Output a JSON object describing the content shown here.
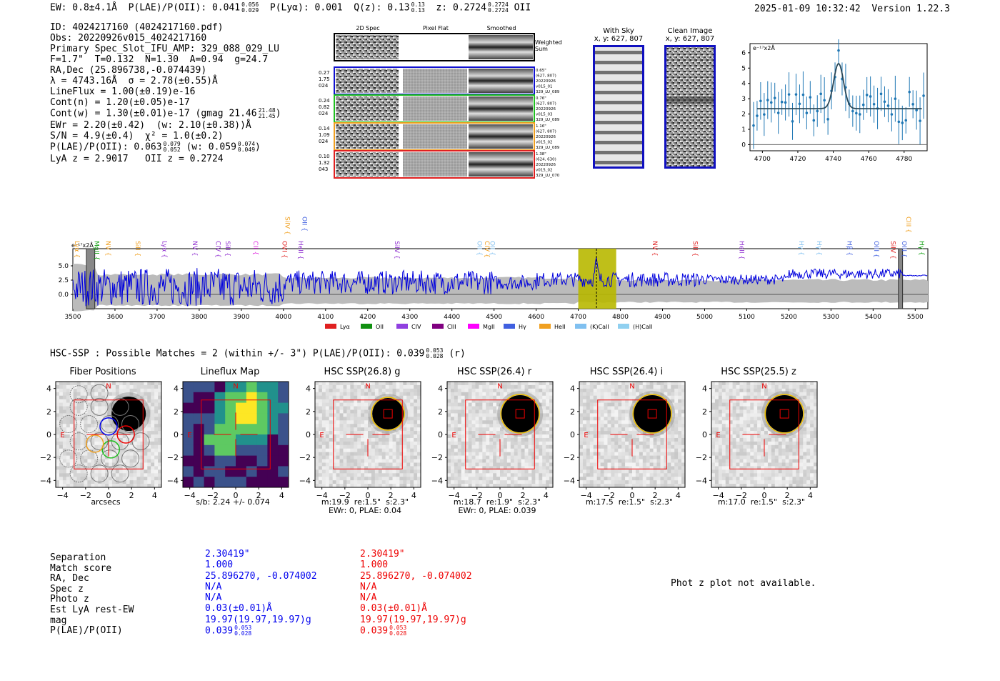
{
  "header": {
    "ew": "EW: 0.8±4.1Å",
    "plae_label": "P(LAE)/P(OII): 0.041",
    "plae_hi": "0.056",
    "plae_lo": "0.029",
    "plya": "P(Lyα): 0.001",
    "qz_label": "Q(z): 0.13",
    "qz_hi": "0.13",
    "qz_lo": "0.13",
    "z_label": "z: 0.2724",
    "z_hi": "0.2724",
    "z_lo": "0.2724",
    "z_line": "OII",
    "timestamp": "2025-01-09 10:32:42",
    "version": "Version 1.22.3"
  },
  "info": {
    "lines": [
      "ID: 4024217160 (4024217160.pdf)",
      "Obs: 20220926v015_4024217160",
      "Primary Spec_Slot_IFU_AMP: 329_088_029_LU",
      "F=1.7\"  T=0.132  N=1.30  A=0.94  g=24.7",
      "RA,Dec (25.896738,-0.074439)",
      "λ = 4743.16Å  σ = 2.78(±0.55)Å",
      "LineFlux = 1.00(±0.19)e-16",
      "Cont(n) = 1.20(±0.05)e-17",
      "Cont(w) = 1.30(±0.01)e-17 (gmag 21.46",
      "EWr = 2.20(±0.42)  (w: 2.10(±0.38))Å",
      "S/N = 4.9(±0.4)  χ² = 1.0(±0.2)",
      "P(LAE)/P(OII): 0.063",
      "LyA z = 2.9017   OII z = 0.2724"
    ],
    "gmag_hi": "21.48",
    "gmag_lo": "21.45",
    "plae_hi": "0.079",
    "plae_lo": "0.052",
    "plae_w": "(w: 0.059",
    "plae_w_hi": "0.074",
    "plae_w_lo": "0.049"
  },
  "cutouts": {
    "col_labels": [
      "2D Spec",
      "Pixel Flat",
      "Smoothed"
    ],
    "weighted_sum": "Weighted Sum",
    "rows": [
      {
        "left": [
          "0.27",
          "1.75",
          "024"
        ],
        "right": [
          "0.65\"",
          "(627, 807)",
          "20220926",
          "v015_01",
          "329_LU_089"
        ],
        "color": "#1010d0"
      },
      {
        "left": [
          "0.24",
          "0.82",
          "024"
        ],
        "right": [
          "0.76\"",
          "(627, 807)",
          "20220926",
          "v015_03",
          "329_LU_089"
        ],
        "color": "#20c020"
      },
      {
        "left": [
          "0.14",
          "1.09",
          "024"
        ],
        "right": [
          "1.16\"",
          "(627, 807)",
          "20220926",
          "v015_02",
          "329_LU_089"
        ],
        "color": "#f0a020"
      },
      {
        "left": [
          "0.10",
          "1.32",
          "043"
        ],
        "right": [
          "1.38\"",
          "(624, 630)",
          "20220926",
          "v015_02",
          "329_LU_070"
        ],
        "color": "#e02020"
      }
    ]
  },
  "sky": {
    "with_sky_title": "With Sky",
    "with_sky_coords": "x, y: 627, 807",
    "clean_title": "Clean Image",
    "clean_coords": "x, y: 627, 807"
  },
  "zoom_chart": {
    "ylabel": "e⁻¹⁷x2Å",
    "x_ticks": [
      "4700",
      "4720",
      "4740",
      "4760",
      "4780"
    ],
    "y_ticks": [
      "0",
      "1",
      "2",
      "3",
      "4",
      "5",
      "6"
    ]
  },
  "chart_data": {
    "type": "line",
    "title": "",
    "ylabel": "e⁻¹⁷x2Å",
    "xlabel": "",
    "xlim": [
      3500,
      5530
    ],
    "ylim": [
      -2.5,
      8
    ],
    "x_ticks": [
      "3500",
      "3600",
      "3700",
      "3800",
      "3900",
      "4000",
      "4100",
      "4200",
      "4300",
      "4400",
      "4500",
      "4600",
      "4700",
      "4800",
      "4900",
      "5000",
      "5100",
      "5200",
      "5300",
      "5400",
      "5500"
    ],
    "y_ticks": [
      "0.0",
      "2.5",
      "5.0"
    ],
    "highlight_range": [
      4700,
      4790
    ],
    "detection_wavelength": 4743.16,
    "line_labels": [
      {
        "name": "Lyα",
        "x": 3510,
        "color": "#f0a020"
      },
      {
        "name": "MgII",
        "x": 3557,
        "color": "#10a010"
      },
      {
        "name": "NV",
        "x": 3584,
        "color": "#f0a020"
      },
      {
        "name": "SiII",
        "x": 3654,
        "color": "#f0a020"
      },
      {
        "name": "Lyα",
        "x": 3718,
        "color": "#9030d0"
      },
      {
        "name": "NV",
        "x": 3790,
        "color": "#9030d0"
      },
      {
        "name": "CIV",
        "x": 3845,
        "color": "#9030d0"
      },
      {
        "name": "SiII",
        "x": 3868,
        "color": "#9030d0"
      },
      {
        "name": "CII",
        "x": 3934,
        "color": "#e030e0"
      },
      {
        "name": "OVI",
        "x": 4003,
        "color": "#e02020"
      },
      {
        "name": "SiIV",
        "x": 4010,
        "color": "#f0a020",
        "high": true
      },
      {
        "name": "OII",
        "x": 4050,
        "color": "#4060e0",
        "high": true
      },
      {
        "name": "HeII",
        "x": 4041,
        "color": "#9030d0"
      },
      {
        "name": "SiIV",
        "x": 4270,
        "color": "#9030d0"
      },
      {
        "name": "OII",
        "x": 4466,
        "color": "#80c0f0"
      },
      {
        "name": "CIV",
        "x": 4484,
        "color": "#f0a020"
      },
      {
        "name": "OII",
        "x": 4496,
        "color": "#80c0f0"
      },
      {
        "name": "NV",
        "x": 4882,
        "color": "#e02020"
      },
      {
        "name": "SiII",
        "x": 4978,
        "color": "#e02020"
      },
      {
        "name": "HeII",
        "x": 5088,
        "color": "#9030d0"
      },
      {
        "name": "Hγ",
        "x": 5230,
        "color": "#80c0f0"
      },
      {
        "name": "Hγ",
        "x": 5272,
        "color": "#80c0f0"
      },
      {
        "name": "Hβ",
        "x": 5344,
        "color": "#4060e0"
      },
      {
        "name": "OIII",
        "x": 5408,
        "color": "#4060e0"
      },
      {
        "name": "SiIV",
        "x": 5448,
        "color": "#e02020"
      },
      {
        "name": "OIII",
        "x": 5474,
        "color": "#4060e0"
      },
      {
        "name": "Hγ",
        "x": 5516,
        "color": "#10a010"
      },
      {
        "name": "CIII",
        "x": 5484,
        "color": "#f0a020",
        "high": true
      }
    ],
    "legend": [
      {
        "name": "Lyα",
        "color": "#e02020"
      },
      {
        "name": "OII",
        "color": "#109010"
      },
      {
        "name": "CIV",
        "color": "#9040e0"
      },
      {
        "name": "CIII",
        "color": "#800080"
      },
      {
        "name": "MgII",
        "color": "#ff00ff"
      },
      {
        "name": "Hγ",
        "color": "#4060e0"
      },
      {
        "name": "HeII",
        "color": "#f0a020"
      },
      {
        "name": "(K)CaII",
        "color": "#80c0f0"
      },
      {
        "name": "(H)CaII",
        "color": "#90d0f0"
      }
    ]
  },
  "hsc": {
    "summary": "HSC-SSP : Possible Matches = 2 (within +/- 3\")  P(LAE)/P(OII): 0.039",
    "summary_hi": "0.053",
    "summary_lo": "0.028",
    "summary_band": "(r)",
    "panels": [
      {
        "title": "Fiber Positions",
        "cap1": "arcsecs",
        "cap2": ""
      },
      {
        "title": "Lineflux Map",
        "cap1": "s/b: 2.24 +/- 0.074",
        "cap2": ""
      },
      {
        "title": "HSC SSP(26.8) g",
        "cap1": "m:19.9  re:1.5\"  s:2.3\"",
        "cap2": "EWr: 0, PLAE: 0.04"
      },
      {
        "title": "HSC SSP(26.4) r",
        "cap1": "m:18.7  re:1.9\"  s:2.3\"",
        "cap2": "EWr: 0, PLAE: 0.039"
      },
      {
        "title": "HSC SSP(26.4) i",
        "cap1": "m:17.5  re:1.5\"  s:2.3\"",
        "cap2": ""
      },
      {
        "title": "HSC SSP(25.5) z",
        "cap1": "m:17.0  re:1.5\"  s:2.3\"",
        "cap2": ""
      }
    ],
    "axis_ticks": [
      "-4",
      "-2",
      "0",
      "2",
      "4"
    ],
    "north": "N",
    "east": "E"
  },
  "table": {
    "labels": [
      "Separation",
      "Match score",
      "RA, Dec",
      "Spec z",
      "Photo z",
      "Est LyA rest-EW",
      "mag",
      "P(LAE)/P(OII)"
    ],
    "col1": [
      "2.30419\"",
      "1.000",
      "25.896270, -0.074002",
      "N/A",
      "N/A",
      "0.03(±0.01)Å",
      "19.97(19.97,19.97)g",
      "0.039"
    ],
    "col2": [
      "2.30419\"",
      "1.000",
      "25.896270, -0.074002",
      "N/A",
      "N/A",
      "0.03(±0.01)Å",
      "19.97(19.97,19.97)g",
      "0.039"
    ],
    "plae_hi": "0.053",
    "plae_lo": "0.028",
    "col1_color": "#0000ee",
    "col2_color": "#ee0000",
    "photz_note": "Phot z plot not available."
  }
}
